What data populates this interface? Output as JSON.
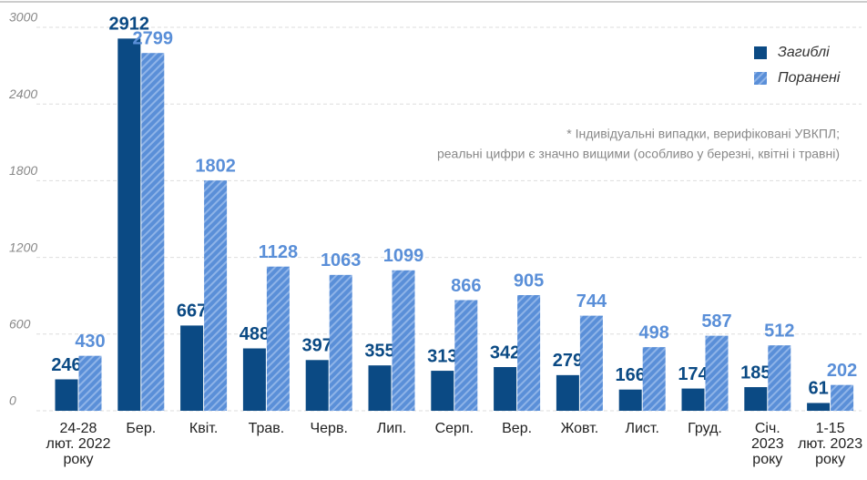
{
  "chart_data": {
    "type": "bar",
    "categories": [
      "24-28\nлют. 2022\nроку",
      "Бер.",
      "Квіт.",
      "Трав.",
      "Черв.",
      "Лип.",
      "Серп.",
      "Вер.",
      "Жовт.",
      "Лист.",
      "Груд.",
      "Січ.\n2023\nроку",
      "1-15\nлют. 2023\nроку"
    ],
    "series": [
      {
        "name": "Загиблі",
        "color": "#0b4a84",
        "values": [
          246,
          2912,
          667,
          488,
          397,
          355,
          313,
          342,
          279,
          166,
          174,
          185,
          61
        ]
      },
      {
        "name": "Поранені",
        "color": "#5a8fd8",
        "hatch": true,
        "values": [
          430,
          2799,
          1802,
          1128,
          1063,
          1099,
          866,
          905,
          744,
          498,
          587,
          512,
          202
        ]
      }
    ],
    "annotation": [
      "* Індивідуальні випадки, верифіковані УВКПЛ;",
      "реальні цифри є значно вищими (особливо у березні, квітні і травні)"
    ],
    "ylim": [
      0,
      3000
    ],
    "yticks": [
      0,
      600,
      1200,
      1800,
      2400,
      3000
    ],
    "grid": true,
    "legend": "top-right"
  }
}
